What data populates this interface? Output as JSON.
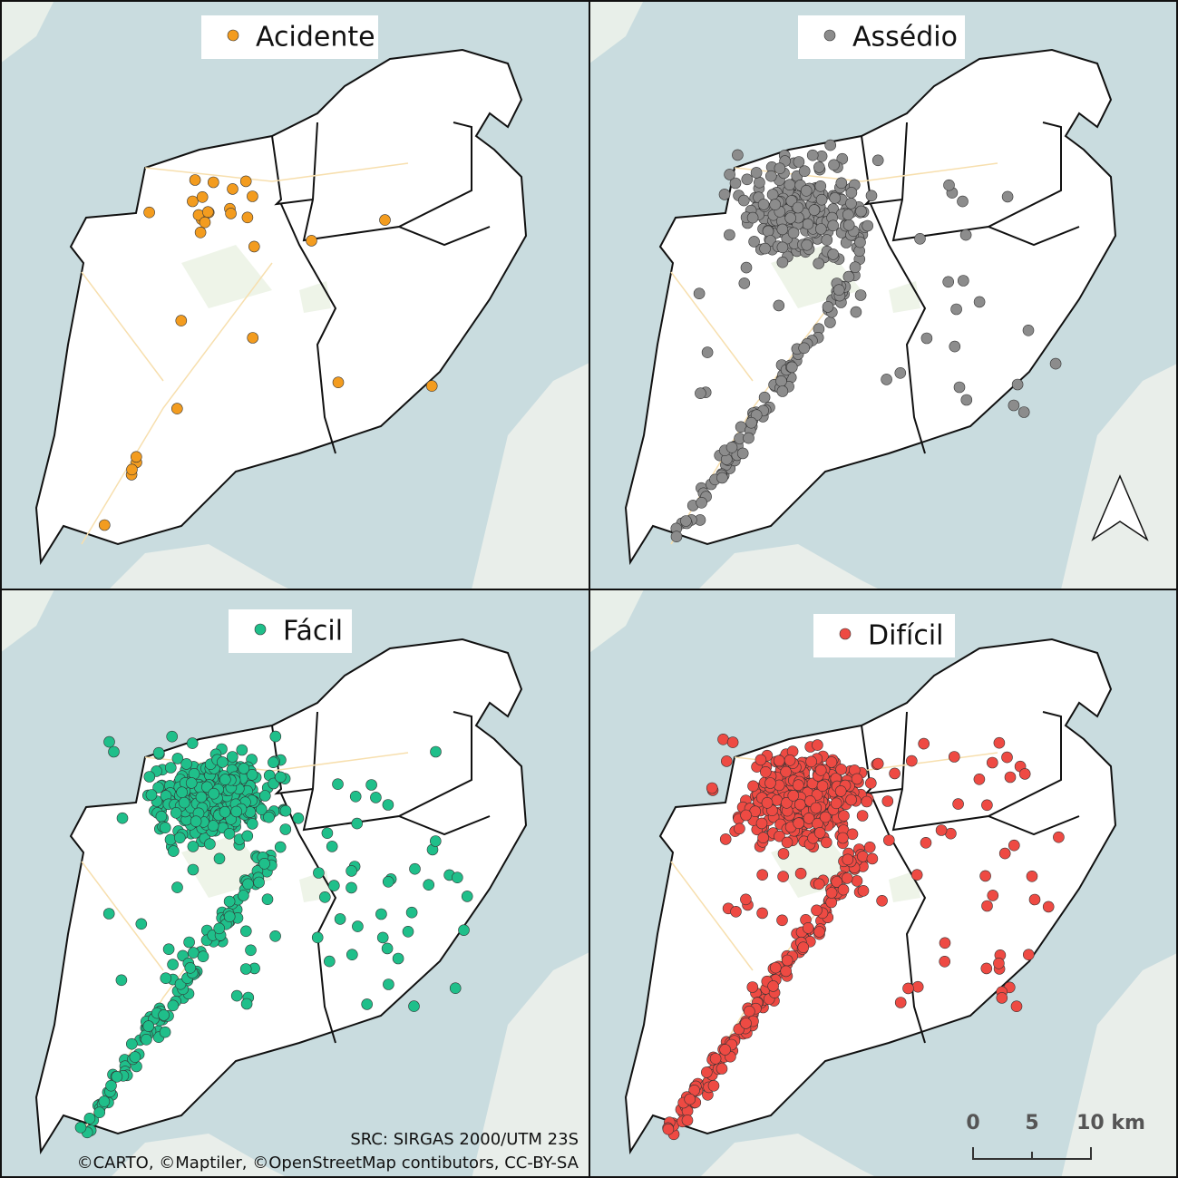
{
  "panels": [
    {
      "title": "Acidente",
      "color": "#f39c1f"
    },
    {
      "title": "Assédio",
      "color": "#8c8c8c"
    },
    {
      "title": "Fácil",
      "color": "#1fbf8a"
    },
    {
      "title": "Difícil",
      "color": "#ee4a43"
    }
  ],
  "crs": "SRC: SIRGAS 2000/UTM 23S",
  "attribution": "©CARTO, ©Maptiler, ©OpenStreetMap contibutors, CC-BY-SA",
  "scale_bar": {
    "labels": [
      "0",
      "5",
      "10 km"
    ]
  }
}
